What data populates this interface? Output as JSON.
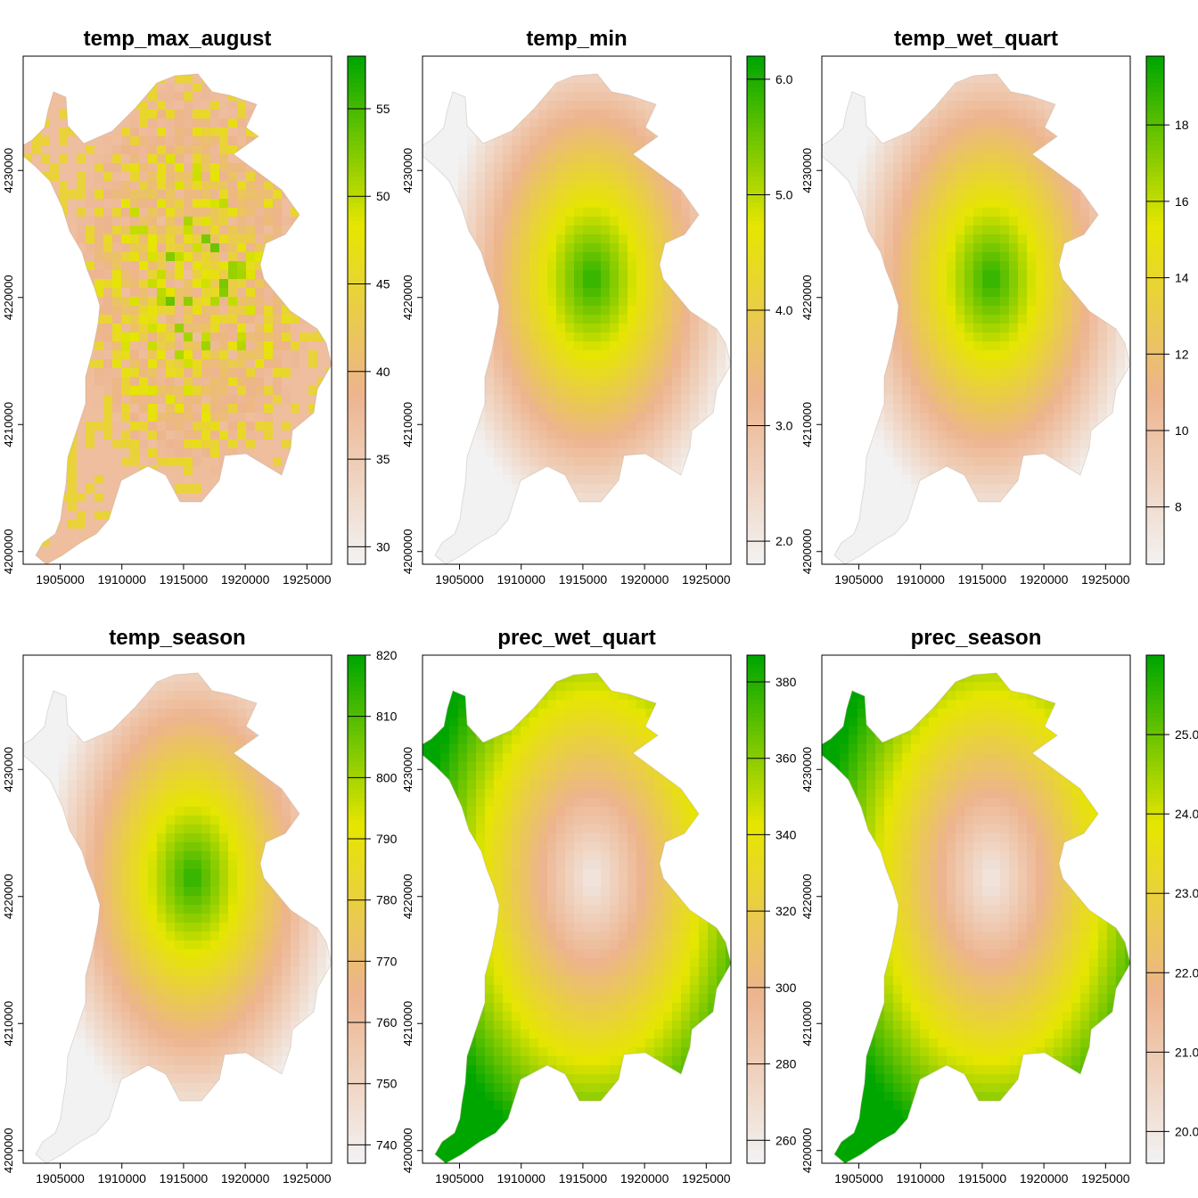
{
  "chart_data": [
    {
      "type": "heatmap",
      "title": "temp_max_august",
      "xlim": [
        1902000,
        1927000
      ],
      "ylim": [
        4199000,
        4239000
      ],
      "x_ticks": [
        "1905000",
        "1910000",
        "1915000",
        "1920000",
        "1925000"
      ],
      "y_ticks": [
        "4200000",
        "4210000",
        "4220000",
        "4230000"
      ],
      "legend": {
        "min": 29,
        "max": 58,
        "ticks": [
          "30",
          "35",
          "40",
          "45",
          "50",
          "55"
        ]
      },
      "pattern": "noise",
      "colors": [
        "#f2f2f2",
        "#edb48e",
        "#e6e600",
        "#00a600"
      ]
    },
    {
      "type": "heatmap",
      "title": "temp_min",
      "xlim": [
        1902000,
        1927000
      ],
      "ylim": [
        4199000,
        4239000
      ],
      "x_ticks": [
        "1905000",
        "1910000",
        "1915000",
        "1920000",
        "1925000"
      ],
      "y_ticks": [
        "4200000",
        "4210000",
        "4220000",
        "4230000"
      ],
      "legend": {
        "min": 1.8,
        "max": 6.2,
        "ticks": [
          "2.0",
          "3.0",
          "4.0",
          "5.0",
          "6.0"
        ]
      },
      "pattern": "core_high",
      "colors": [
        "#f2f2f2",
        "#edb48e",
        "#e6e600",
        "#00a600"
      ]
    },
    {
      "type": "heatmap",
      "title": "temp_wet_quart",
      "xlim": [
        1902000,
        1927000
      ],
      "ylim": [
        4199000,
        4239000
      ],
      "x_ticks": [
        "1905000",
        "1910000",
        "1915000",
        "1920000",
        "1925000"
      ],
      "y_ticks": [
        "4200000",
        "4210000",
        "4220000",
        "4230000"
      ],
      "legend": {
        "min": 6.5,
        "max": 19.8,
        "ticks": [
          "8",
          "10",
          "12",
          "14",
          "16",
          "18"
        ]
      },
      "pattern": "core_high",
      "colors": [
        "#f2f2f2",
        "#edb48e",
        "#e6e600",
        "#00a600"
      ]
    },
    {
      "type": "heatmap",
      "title": "temp_season",
      "xlim": [
        1902000,
        1927000
      ],
      "ylim": [
        4199000,
        4239000
      ],
      "x_ticks": [
        "1905000",
        "1910000",
        "1915000",
        "1920000",
        "1925000"
      ],
      "y_ticks": [
        "4200000",
        "4210000",
        "4220000",
        "4230000"
      ],
      "legend": {
        "min": 737,
        "max": 820,
        "ticks": [
          "740",
          "750",
          "760",
          "770",
          "780",
          "790",
          "800",
          "810",
          "820"
        ]
      },
      "pattern": "core_high",
      "colors": [
        "#f2f2f2",
        "#edb48e",
        "#e6e600",
        "#00a600"
      ]
    },
    {
      "type": "heatmap",
      "title": "prec_wet_quart",
      "xlim": [
        1902000,
        1927000
      ],
      "ylim": [
        4199000,
        4239000
      ],
      "x_ticks": [
        "1905000",
        "1910000",
        "1915000",
        "1920000",
        "1925000"
      ],
      "y_ticks": [
        "4200000",
        "4210000",
        "4220000",
        "4230000"
      ],
      "legend": {
        "min": 254,
        "max": 387,
        "ticks": [
          "260",
          "280",
          "300",
          "320",
          "340",
          "360",
          "380"
        ]
      },
      "pattern": "edge_high",
      "colors": [
        "#f2f2f2",
        "#edb48e",
        "#e6e600",
        "#00a600"
      ]
    },
    {
      "type": "heatmap",
      "title": "prec_season",
      "xlim": [
        1902000,
        1927000
      ],
      "ylim": [
        4199000,
        4239000
      ],
      "x_ticks": [
        "1905000",
        "1910000",
        "1915000",
        "1920000",
        "1925000"
      ],
      "y_ticks": [
        "4200000",
        "4210000",
        "4220000",
        "4230000"
      ],
      "legend": {
        "min": 19.6,
        "max": 26.0,
        "ticks": [
          "20.0",
          "21.0",
          "22.0",
          "23.0",
          "24.0",
          "25.0"
        ]
      },
      "pattern": "edge_high",
      "colors": [
        "#f2f2f2",
        "#edb48e",
        "#e6e600",
        "#00a600"
      ]
    }
  ]
}
